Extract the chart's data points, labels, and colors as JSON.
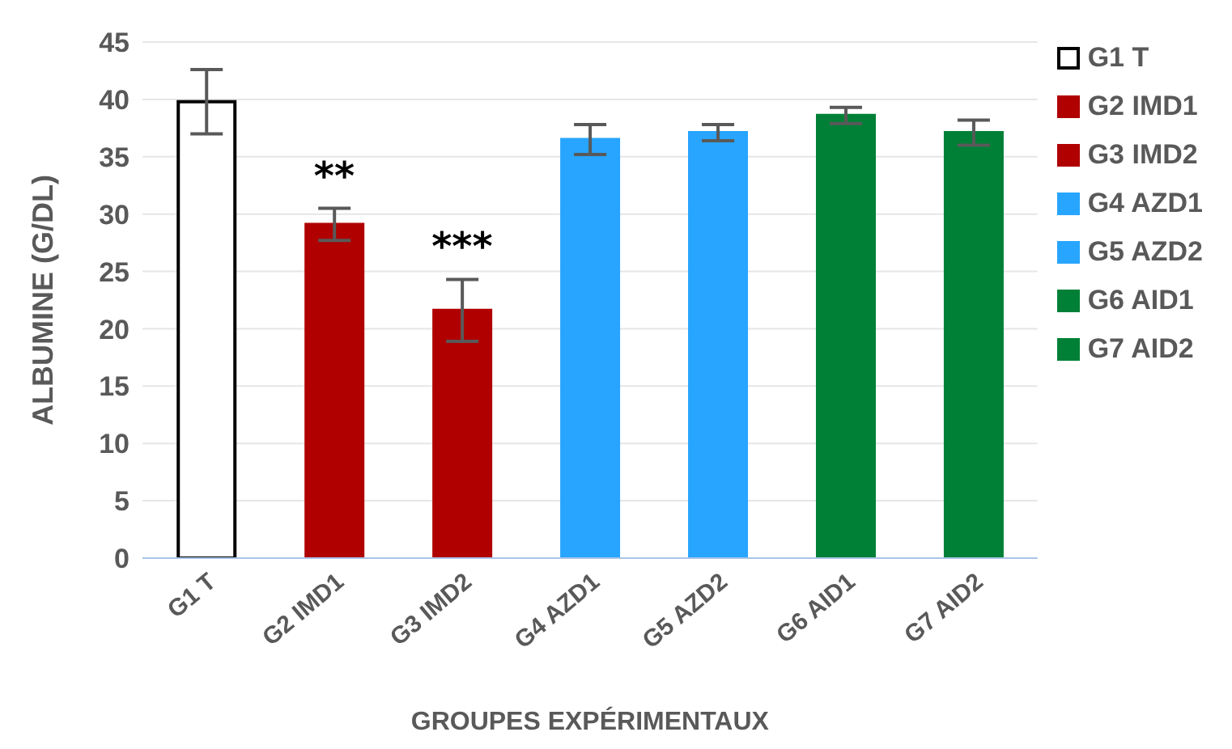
{
  "chart_data": {
    "type": "bar",
    "xlabel": "GROUPES EXPÉRIMENTAUX",
    "ylabel": "ALBUMINE (G/DL)",
    "stacked": true,
    "categories": [
      "G1 T",
      "G2 IMD1",
      "G3 IMD2",
      "G4 AZD1",
      "G5 AZD2",
      "G6 AID1",
      "G7 AID2"
    ],
    "series": [
      {
        "name": "G1 T",
        "color": "#ffffff",
        "values": [
          39.8,
          null,
          null,
          null,
          null,
          null,
          null
        ],
        "errors": [
          2.8,
          null,
          null,
          null,
          null,
          null,
          null
        ]
      },
      {
        "name": "G2 IMD1",
        "color": "#b00000",
        "values": [
          null,
          29.1,
          null,
          null,
          null,
          null,
          null
        ],
        "errors": [
          null,
          1.4,
          null,
          null,
          null,
          null,
          null
        ]
      },
      {
        "name": "G3 IMD2",
        "color": "#b00000",
        "values": [
          null,
          null,
          21.6,
          null,
          null,
          null,
          null
        ],
        "errors": [
          null,
          null,
          2.7,
          null,
          null,
          null,
          null
        ]
      },
      {
        "name": "G4 AZD1",
        "color": "#27a5ff",
        "values": [
          null,
          null,
          null,
          36.5,
          null,
          null,
          null
        ],
        "errors": [
          null,
          null,
          null,
          1.3,
          null,
          null,
          null
        ]
      },
      {
        "name": "G5 AZD2",
        "color": "#27a5ff",
        "values": [
          null,
          null,
          null,
          null,
          37.1,
          null,
          null
        ],
        "errors": [
          null,
          null,
          null,
          null,
          0.7,
          null,
          null
        ]
      },
      {
        "name": "G6 AID1",
        "color": "#008037",
        "values": [
          null,
          null,
          null,
          null,
          null,
          38.6,
          null
        ],
        "errors": [
          null,
          null,
          null,
          null,
          null,
          0.7,
          null
        ]
      },
      {
        "name": "G7 AID2",
        "color": "#008037",
        "values": [
          null,
          null,
          null,
          null,
          null,
          null,
          37.1
        ],
        "errors": [
          null,
          null,
          null,
          null,
          null,
          null,
          1.1
        ]
      }
    ],
    "ylim": [
      0,
      45
    ],
    "yticks": [
      0,
      5,
      10,
      15,
      20,
      25,
      30,
      35,
      40,
      45
    ],
    "grid": "y",
    "legend": "right",
    "annotations": [
      {
        "text": "**",
        "x": "G2 IMD1",
        "y": 29.1
      },
      {
        "text": "***",
        "x": "G3 IMD2",
        "y": 21.6
      }
    ]
  }
}
